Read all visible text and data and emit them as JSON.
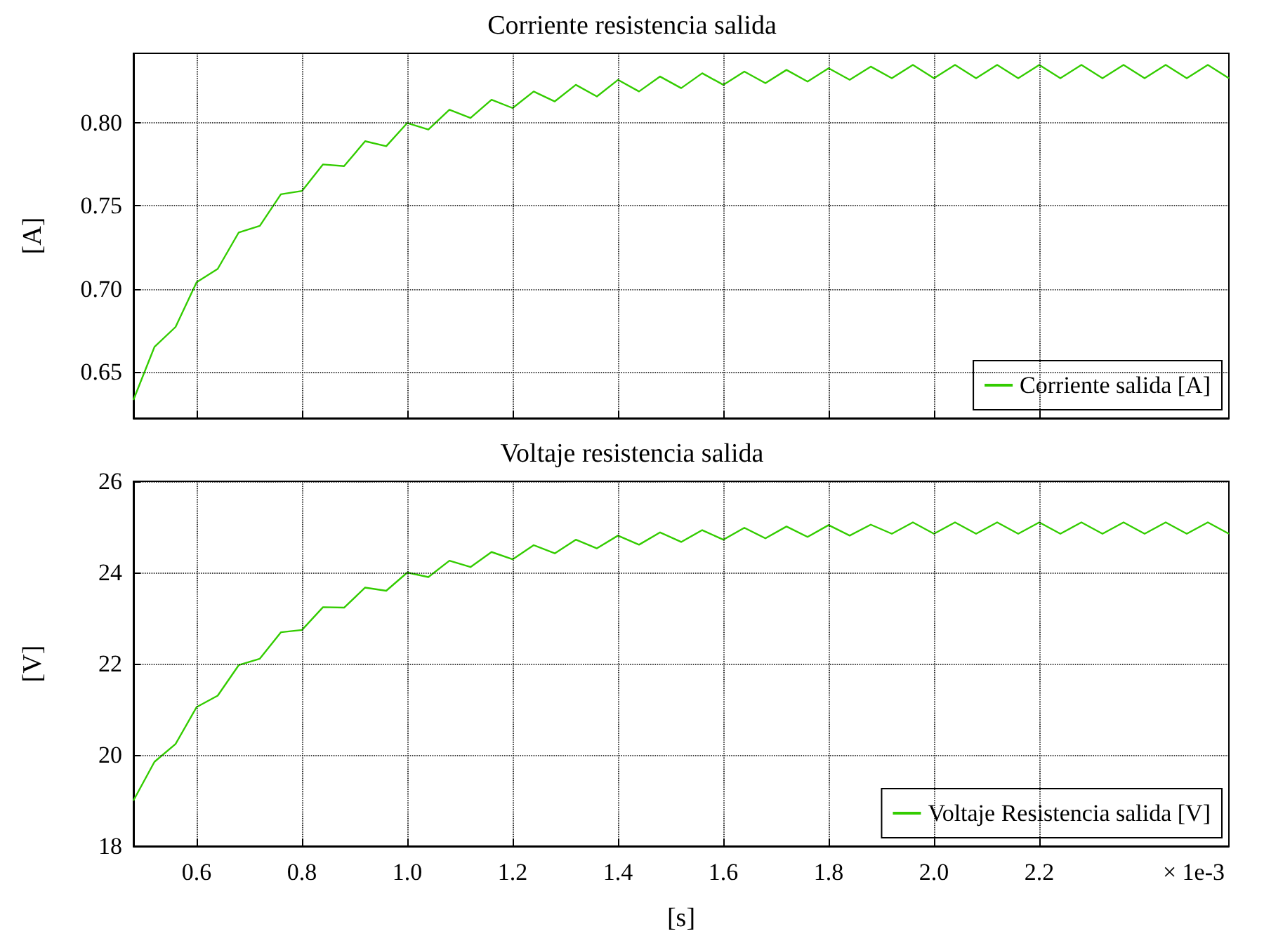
{
  "chart_data": [
    {
      "type": "line",
      "title": "Corriente resistencia salida",
      "ylabel": "[A]",
      "x": [
        0.48,
        0.52,
        0.56,
        0.6,
        0.64,
        0.68,
        0.72,
        0.76,
        0.8,
        0.84,
        0.88,
        0.92,
        0.96,
        1.0,
        1.04,
        1.08,
        1.12,
        1.16,
        1.2,
        1.24,
        1.28,
        1.32,
        1.36,
        1.4,
        1.44,
        1.48,
        1.52,
        1.56,
        1.6,
        1.64,
        1.68,
        1.72,
        1.76,
        1.8,
        1.84,
        1.88,
        1.92,
        1.96,
        2.0,
        2.04,
        2.08,
        2.12,
        2.16,
        2.2,
        2.24,
        2.28,
        2.32,
        2.36,
        2.4,
        2.44,
        2.48,
        2.52,
        2.56
      ],
      "series": [
        {
          "name": "Corriente salida [A]",
          "color": "#33cc00",
          "values": [
            0.633,
            0.665,
            0.677,
            0.704,
            0.712,
            0.734,
            0.738,
            0.757,
            0.759,
            0.775,
            0.774,
            0.789,
            0.786,
            0.8,
            0.796,
            0.808,
            0.803,
            0.814,
            0.809,
            0.819,
            0.813,
            0.823,
            0.816,
            0.826,
            0.819,
            0.828,
            0.821,
            0.83,
            0.823,
            0.831,
            0.824,
            0.832,
            0.825,
            0.833,
            0.826,
            0.834,
            0.827,
            0.835,
            0.827,
            0.835,
            0.827,
            0.835,
            0.827,
            0.835,
            0.827,
            0.835,
            0.827,
            0.835,
            0.827,
            0.835,
            0.827,
            0.835,
            0.827
          ]
        }
      ],
      "xlim": [
        0.48,
        2.56
      ],
      "xticks": [
        0.6,
        0.8,
        1,
        1.2,
        1.4,
        1.6,
        1.8,
        2,
        2.2
      ],
      "ylim": [
        0.622,
        0.842
      ],
      "yticks": [
        0.65,
        {
          "value": 0.7,
          "label": "0.70"
        },
        0.75,
        {
          "value": 0.8,
          "label": "0.80"
        }
      ],
      "tick_labels": "y",
      "grid": true,
      "legend": "bottom right",
      "marker": "none",
      "line_style": "solid"
    },
    {
      "type": "line",
      "title": "Voltaje resistencia salida",
      "xlabel": "[s]",
      "ylabel": "[V]",
      "annotations": [
        "× 1e-3"
      ],
      "x": [
        0.48,
        0.52,
        0.56,
        0.6,
        0.64,
        0.68,
        0.72,
        0.76,
        0.8,
        0.84,
        0.88,
        0.92,
        0.96,
        1.0,
        1.04,
        1.08,
        1.12,
        1.16,
        1.2,
        1.24,
        1.28,
        1.32,
        1.36,
        1.4,
        1.44,
        1.48,
        1.52,
        1.56,
        1.6,
        1.64,
        1.68,
        1.72,
        1.76,
        1.8,
        1.84,
        1.88,
        1.92,
        1.96,
        2.0,
        2.04,
        2.08,
        2.12,
        2.16,
        2.2,
        2.24,
        2.28,
        2.32,
        2.36,
        2.4,
        2.44,
        2.48,
        2.52,
        2.56
      ],
      "series": [
        {
          "name": "Voltaje Resistencia salida [V]",
          "color": "#33cc00",
          "values": [
            19.0,
            19.85,
            20.24,
            21.05,
            21.3,
            21.97,
            22.11,
            22.69,
            22.74,
            23.24,
            23.23,
            23.67,
            23.6,
            24.0,
            23.9,
            24.26,
            24.12,
            24.45,
            24.29,
            24.6,
            24.42,
            24.72,
            24.53,
            24.81,
            24.61,
            24.88,
            24.67,
            24.93,
            24.72,
            24.98,
            24.75,
            25.01,
            24.78,
            25.04,
            24.81,
            25.05,
            24.85,
            25.1,
            24.85,
            25.1,
            24.85,
            25.1,
            24.85,
            25.1,
            24.85,
            25.1,
            24.85,
            25.1,
            24.85,
            25.1,
            24.85,
            25.1,
            24.85
          ]
        }
      ],
      "xlim": [
        0.48,
        2.56
      ],
      "xticks": [
        0.6,
        0.8,
        {
          "value": 1,
          "label": "1.0"
        },
        1.2,
        1.4,
        1.6,
        1.8,
        {
          "value": 2,
          "label": "2.0"
        },
        2.2
      ],
      "ylim": [
        18,
        26
      ],
      "yticks": [
        18,
        20,
        22,
        24,
        26
      ],
      "grid": true,
      "legend": "bottom right",
      "marker": "none",
      "line_style": "solid"
    }
  ]
}
